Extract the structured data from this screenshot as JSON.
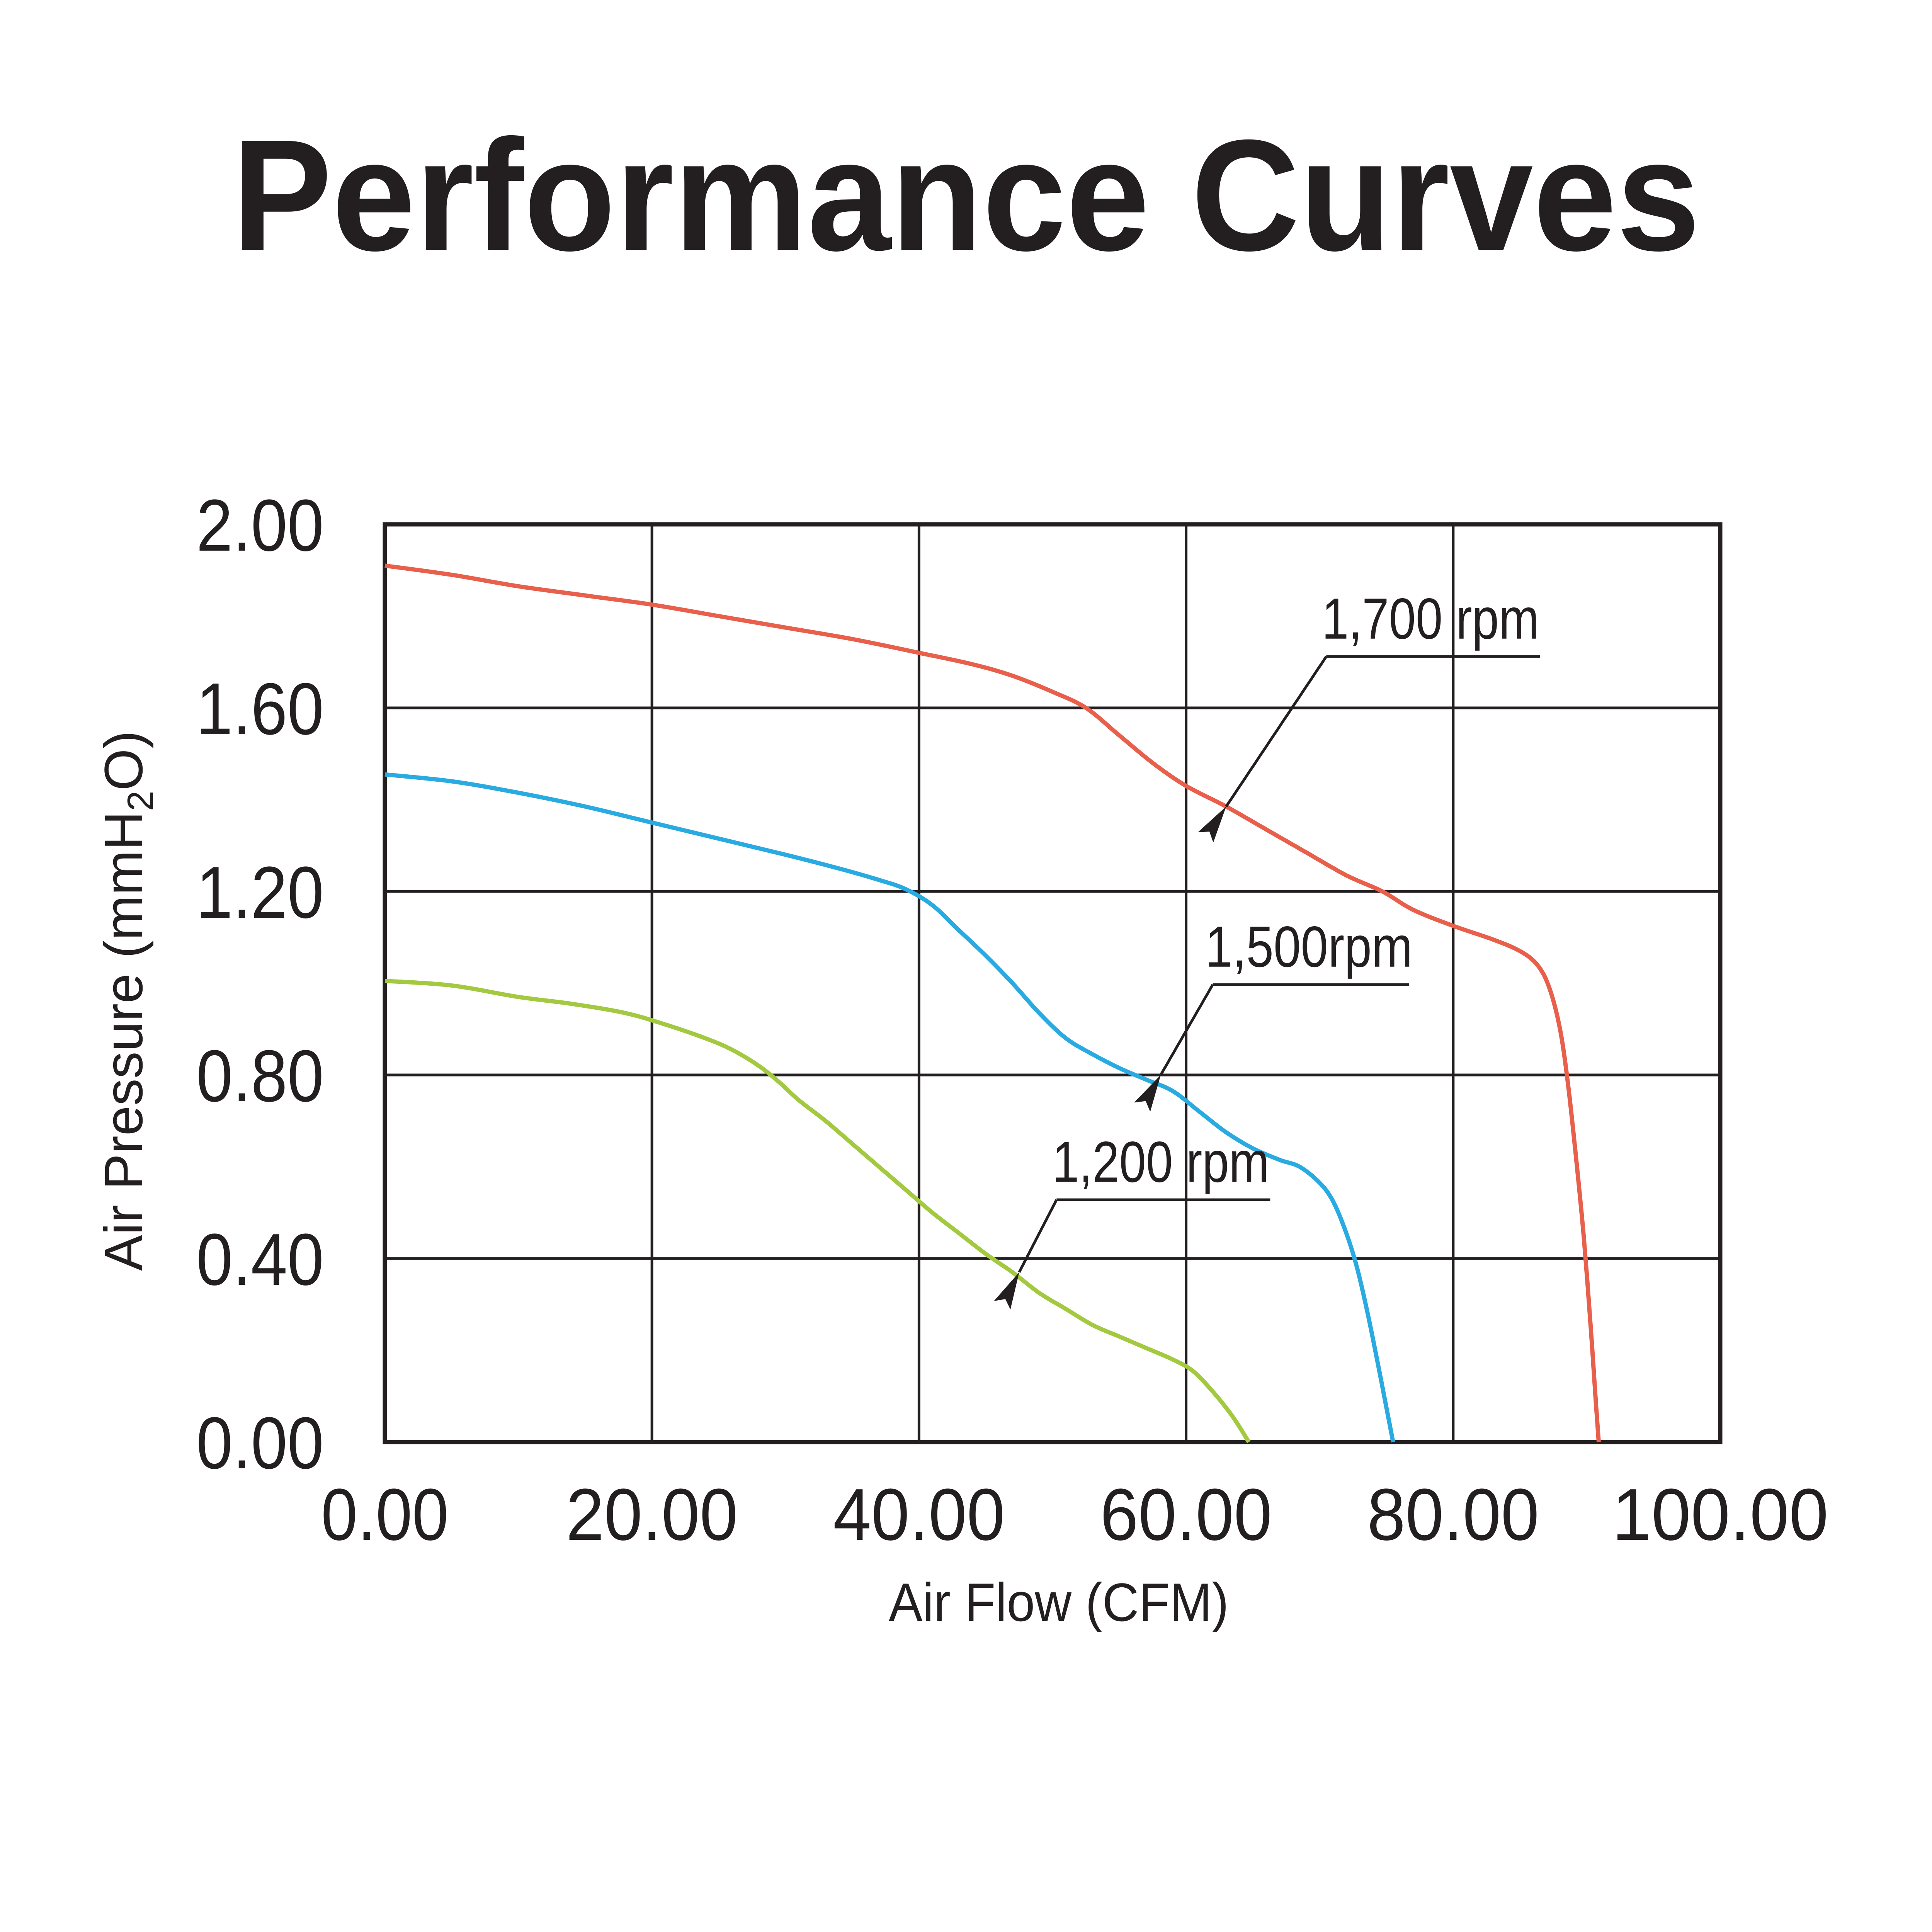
{
  "chart_data": {
    "type": "line",
    "title": "Performance Curves",
    "xlabel": "Air Flow (CFM)",
    "ylabel": {
      "pre": "Air Pressure (mmH",
      "sub": "2",
      "post": "O)"
    },
    "xlim": [
      0,
      100
    ],
    "ylim": [
      0,
      2
    ],
    "grid": "on",
    "x_ticks": [
      {
        "label": "0.00",
        "value": 0
      },
      {
        "label": "20.00",
        "value": 20
      },
      {
        "label": "40.00",
        "value": 40
      },
      {
        "label": "60.00",
        "value": 60
      },
      {
        "label": "80.00",
        "value": 80
      },
      {
        "label": "100.00",
        "value": 100
      }
    ],
    "y_ticks": [
      {
        "label": "0.00",
        "value": 0
      },
      {
        "label": "0.40",
        "value": 0.4
      },
      {
        "label": "0.80",
        "value": 0.8
      },
      {
        "label": "1.20",
        "value": 1.2
      },
      {
        "label": "1.60",
        "value": 1.6
      },
      {
        "label": "2.00",
        "value": 2
      }
    ],
    "series": [
      {
        "name": "1,700 rpm",
        "color": "#E8604B",
        "points": [
          [
            0,
            1.91
          ],
          [
            5,
            1.89
          ],
          [
            10,
            1.865
          ],
          [
            15,
            1.845
          ],
          [
            20,
            1.825
          ],
          [
            25,
            1.8
          ],
          [
            30,
            1.775
          ],
          [
            35,
            1.75
          ],
          [
            40,
            1.72
          ],
          [
            44,
            1.695
          ],
          [
            47,
            1.67
          ],
          [
            50,
            1.635
          ],
          [
            52.5,
            1.6
          ],
          [
            55,
            1.54
          ],
          [
            57.5,
            1.48
          ],
          [
            60,
            1.43
          ],
          [
            63,
            1.385
          ],
          [
            66,
            1.335
          ],
          [
            69,
            1.285
          ],
          [
            72,
            1.235
          ],
          [
            74.7,
            1.2
          ],
          [
            77,
            1.16
          ],
          [
            80,
            1.125
          ],
          [
            83,
            1.095
          ],
          [
            85,
            1.07
          ],
          [
            86.3,
            1.04
          ],
          [
            87.2,
            0.99
          ],
          [
            88,
            0.9
          ],
          [
            88.6,
            0.78
          ],
          [
            89.2,
            0.62
          ],
          [
            89.8,
            0.44
          ],
          [
            90.3,
            0.25
          ],
          [
            90.7,
            0.08
          ],
          [
            90.9,
            0
          ]
        ]
      },
      {
        "name": "1,500rpm",
        "color": "#29ABE2",
        "points": [
          [
            0,
            1.455
          ],
          [
            5,
            1.44
          ],
          [
            10,
            1.415
          ],
          [
            15,
            1.385
          ],
          [
            20,
            1.35
          ],
          [
            25,
            1.315
          ],
          [
            30,
            1.28
          ],
          [
            34,
            1.25
          ],
          [
            37,
            1.225
          ],
          [
            39,
            1.205
          ],
          [
            41,
            1.17
          ],
          [
            43,
            1.115
          ],
          [
            45,
            1.06
          ],
          [
            47,
            1.0
          ],
          [
            49,
            0.935
          ],
          [
            51,
            0.88
          ],
          [
            53,
            0.845
          ],
          [
            55,
            0.815
          ],
          [
            57,
            0.79
          ],
          [
            59,
            0.765
          ],
          [
            61,
            0.72
          ],
          [
            63,
            0.675
          ],
          [
            65,
            0.64
          ],
          [
            67,
            0.615
          ],
          [
            68.5,
            0.6
          ],
          [
            70,
            0.565
          ],
          [
            71,
            0.525
          ],
          [
            72,
            0.455
          ],
          [
            72.8,
            0.38
          ],
          [
            73.6,
            0.28
          ],
          [
            74.4,
            0.165
          ],
          [
            75.1,
            0.06
          ],
          [
            75.5,
            0
          ]
        ]
      },
      {
        "name": "1,200 rpm",
        "color": "#A3C940",
        "points": [
          [
            0,
            1.005
          ],
          [
            5,
            0.995
          ],
          [
            10,
            0.97
          ],
          [
            14,
            0.955
          ],
          [
            18,
            0.935
          ],
          [
            21,
            0.91
          ],
          [
            24,
            0.88
          ],
          [
            26,
            0.855
          ],
          [
            28,
            0.82
          ],
          [
            29.5,
            0.785
          ],
          [
            31,
            0.745
          ],
          [
            33,
            0.7
          ],
          [
            35,
            0.65
          ],
          [
            37,
            0.6
          ],
          [
            39,
            0.55
          ],
          [
            41,
            0.5
          ],
          [
            43,
            0.455
          ],
          [
            45,
            0.41
          ],
          [
            47,
            0.37
          ],
          [
            49,
            0.325
          ],
          [
            51,
            0.29
          ],
          [
            53,
            0.255
          ],
          [
            55,
            0.23
          ],
          [
            57,
            0.205
          ],
          [
            59,
            0.18
          ],
          [
            60.5,
            0.155
          ],
          [
            62,
            0.11
          ],
          [
            63.5,
            0.055
          ],
          [
            64.7,
            0
          ]
        ]
      }
    ],
    "annotations": [
      {
        "text": "1,700 rpm",
        "arrow_tip": {
          "cfm": 63.0,
          "pressure": 1.385
        },
        "elbow": {
          "cfm": 70.5,
          "pressure": 1.712
        },
        "underline_end_cfm": 86.5,
        "label_center_cfm": 78.3,
        "label_baseline_pressure": 1.751
      },
      {
        "text": "1,500rpm",
        "arrow_tip": {
          "cfm": 58.1,
          "pressure": 0.8
        },
        "elbow": {
          "cfm": 62.0,
          "pressure": 0.997
        },
        "underline_end_cfm": 76.7,
        "label_center_cfm": 69.2,
        "label_baseline_pressure": 1.036
      },
      {
        "text": "1,200 rpm",
        "arrow_tip": {
          "cfm": 47.5,
          "pressure": 0.37
        },
        "elbow": {
          "cfm": 50.3,
          "pressure": 0.528
        },
        "underline_end_cfm": 66.3,
        "label_center_cfm": 58.1,
        "label_baseline_pressure": 0.567
      }
    ]
  }
}
